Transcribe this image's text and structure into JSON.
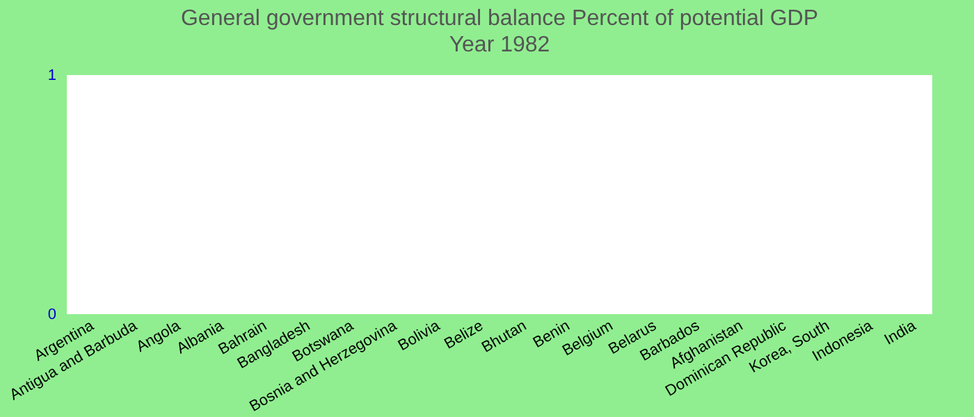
{
  "chart_data": {
    "type": "bar",
    "title": "General government structural balance  Percent of potential GDP",
    "subtitle": "Year 1982",
    "categories": [
      "Argentina",
      "Antigua and Barbuda",
      "Angola",
      "Albania",
      "Bahrain",
      "Bangladesh",
      "Botswana",
      "Bosnia and Herzegovina",
      "Bolivia",
      "Belize",
      "Bhutan",
      "Benin",
      "Belgium",
      "Belarus",
      "Barbados",
      "Afghanistan",
      "Dominican Republic",
      "Korea, South",
      "Indonesia",
      "India"
    ],
    "values": [
      null,
      null,
      null,
      null,
      null,
      null,
      null,
      null,
      null,
      null,
      null,
      null,
      null,
      null,
      null,
      null,
      null,
      null,
      null,
      null
    ],
    "ylim": [
      0,
      1
    ],
    "yticks": [
      0,
      1
    ],
    "grid": false
  }
}
